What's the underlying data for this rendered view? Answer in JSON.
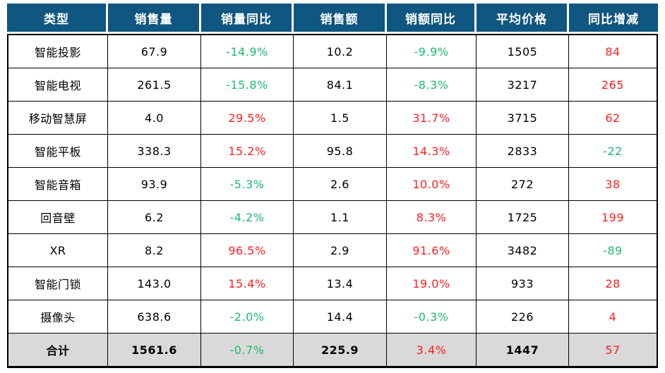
{
  "chart_data": {
    "type": "table",
    "columns": [
      "类型",
      "销售量",
      "销量同比",
      "销售额",
      "销额同比",
      "平均价格",
      "同比增减"
    ],
    "rows": [
      [
        "智能投影",
        "67.9",
        "-14.9%",
        "10.2",
        "-9.9%",
        "1505",
        "84"
      ],
      [
        "智能电视",
        "261.5",
        "-15.8%",
        "84.1",
        "-8.3%",
        "3217",
        "265"
      ],
      [
        "移动智慧屏",
        "4.0",
        "29.5%",
        "1.5",
        "31.7%",
        "3715",
        "62"
      ],
      [
        "智能平板",
        "338.3",
        "15.2%",
        "95.8",
        "14.3%",
        "2833",
        "-22"
      ],
      [
        "智能音箱",
        "93.9",
        "-5.3%",
        "2.6",
        "10.0%",
        "272",
        "38"
      ],
      [
        "回音壁",
        "6.2",
        "-4.2%",
        "1.1",
        "8.3%",
        "1725",
        "199"
      ],
      [
        "XR",
        "8.2",
        "96.5%",
        "2.9",
        "91.6%",
        "3482",
        "-89"
      ],
      [
        "智能门锁",
        "143.0",
        "15.4%",
        "13.4",
        "19.0%",
        "933",
        "28"
      ],
      [
        "摄像头",
        "638.6",
        "-2.0%",
        "14.4",
        "-0.3%",
        "226",
        "4"
      ],
      [
        "合计",
        "1561.6",
        "-0.7%",
        "225.9",
        "3.4%",
        "1447",
        "57"
      ]
    ],
    "total_row_label": "合计",
    "colored_column_indexes": [
      2,
      4,
      6
    ],
    "layout": "header row navy with white separators, body black 1px gridlines, total row gray"
  },
  "colors": {
    "header_bg": "#0f5680",
    "header_text": "#ffffff",
    "total_bg": "#d9d9d9",
    "positive_red": "#fb2020",
    "negative_green": "#1cb96e",
    "border": "#000000"
  }
}
